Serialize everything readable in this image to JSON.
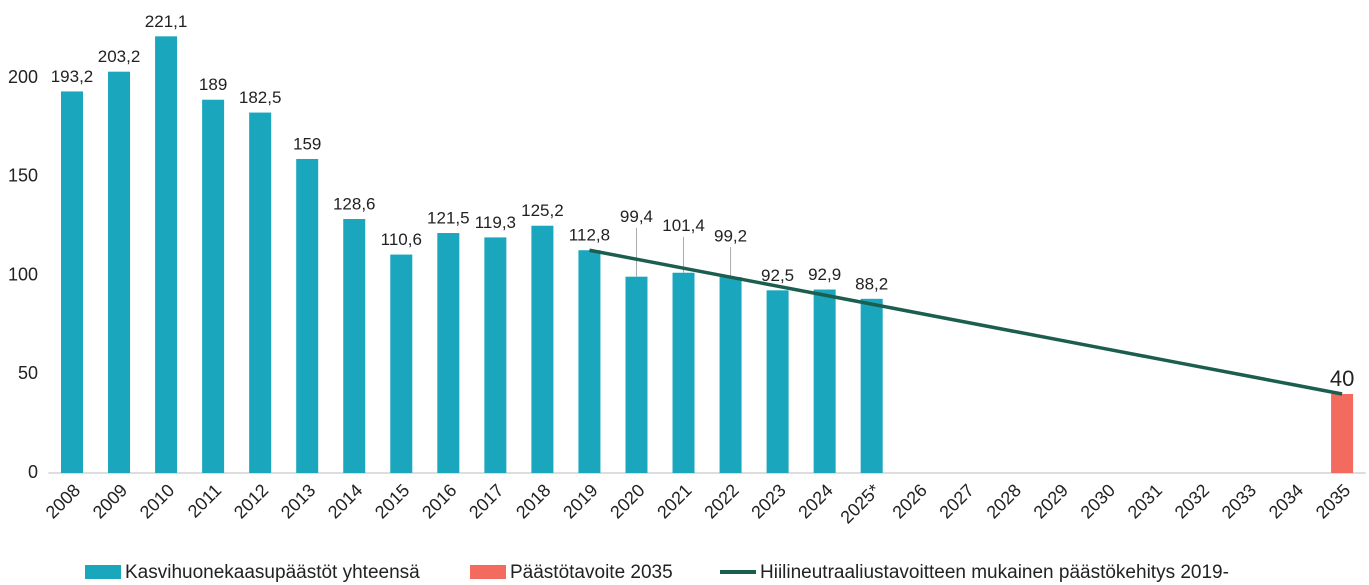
{
  "chart_data": {
    "type": "bar",
    "categories": [
      "2008",
      "2009",
      "2010",
      "2011",
      "2012",
      "2013",
      "2014",
      "2015",
      "2016",
      "2017",
      "2018",
      "2019",
      "2020",
      "2021",
      "2022",
      "2023",
      "2024",
      "2025*",
      "2026",
      "2027",
      "2028",
      "2029",
      "2030",
      "2031",
      "2032",
      "2033",
      "2034",
      "2035"
    ],
    "series": [
      {
        "name": "Kasvihuonekaasupäästöt yhteensä",
        "color": "#1aa6bd",
        "type": "bar",
        "values": [
          193.2,
          203.2,
          221.1,
          189,
          182.5,
          159,
          128.6,
          110.6,
          121.5,
          119.3,
          125.2,
          112.8,
          99.4,
          101.4,
          99.2,
          92.5,
          92.9,
          88.2,
          null,
          null,
          null,
          null,
          null,
          null,
          null,
          null,
          null,
          null
        ],
        "value_labels": [
          "193,2",
          "203,2",
          "221,1",
          "189",
          "182,5",
          "159",
          "128,6",
          "110,6",
          "121,5",
          "119,3",
          "125,2",
          "112,8",
          "99,4",
          "101,4",
          "99,2",
          "92,5",
          "92,9",
          "88,2",
          null,
          null,
          null,
          null,
          null,
          null,
          null,
          null,
          null,
          null
        ]
      },
      {
        "name": "Päästötavoite 2035",
        "color": "#f26b5e",
        "type": "bar",
        "values": [
          null,
          null,
          null,
          null,
          null,
          null,
          null,
          null,
          null,
          null,
          null,
          null,
          null,
          null,
          null,
          null,
          null,
          null,
          null,
          null,
          null,
          null,
          null,
          null,
          null,
          null,
          null,
          40
        ],
        "value_labels": [
          null,
          null,
          null,
          null,
          null,
          null,
          null,
          null,
          null,
          null,
          null,
          null,
          null,
          null,
          null,
          null,
          null,
          null,
          null,
          null,
          null,
          null,
          null,
          null,
          null,
          null,
          null,
          "40"
        ]
      },
      {
        "name": "Hiilineutraaliustavoitteen mukainen päästökehitys 2019-",
        "color": "#1b5e4f",
        "type": "line",
        "values": [
          null,
          null,
          null,
          null,
          null,
          null,
          null,
          null,
          null,
          null,
          null,
          112.8,
          108.25,
          103.7,
          99.15,
          94.6,
          90.05,
          85.5,
          80.95,
          76.4,
          71.85,
          67.3,
          62.75,
          58.2,
          53.65,
          49.1,
          44.55,
          40
        ]
      }
    ],
    "ylim": [
      0,
      230
    ],
    "yticks": [
      0,
      50,
      100,
      150,
      200
    ],
    "grid": false
  }
}
